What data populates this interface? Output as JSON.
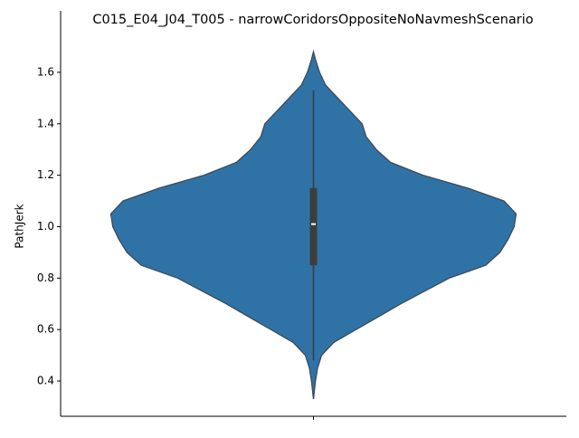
{
  "chart_data": {
    "type": "violin",
    "title": "C015_E04_J04_T005 - narrowCoridorsOppositeNoNavmeshScenario",
    "ylabel": "PathJerk",
    "color": "#2f73a6",
    "ylim": [
      0.263,
      1.765
    ],
    "yticks": [
      0.4,
      0.6,
      0.8,
      1.0,
      1.2,
      1.4,
      1.6
    ],
    "violin": {
      "y": [
        0.33,
        0.4,
        0.45,
        0.5,
        0.55,
        0.6,
        0.65,
        0.7,
        0.75,
        0.8,
        0.85,
        0.9,
        0.95,
        1.0,
        1.05,
        1.1,
        1.15,
        1.2,
        1.25,
        1.3,
        1.35,
        1.4,
        1.45,
        1.5,
        1.55,
        1.6,
        1.65,
        1.68
      ],
      "density": [
        0,
        0.01,
        0.02,
        0.04,
        0.1,
        0.21,
        0.32,
        0.43,
        0.55,
        0.67,
        0.85,
        0.92,
        0.96,
        0.99,
        1,
        0.94,
        0.76,
        0.54,
        0.38,
        0.31,
        0.26,
        0.24,
        0.18,
        0.12,
        0.06,
        0.03,
        0.01,
        0
      ]
    },
    "box": {
      "whisker_low": 0.48,
      "q1": 0.85,
      "median": 1.01,
      "q3": 1.15,
      "whisker_high": 1.53
    }
  }
}
